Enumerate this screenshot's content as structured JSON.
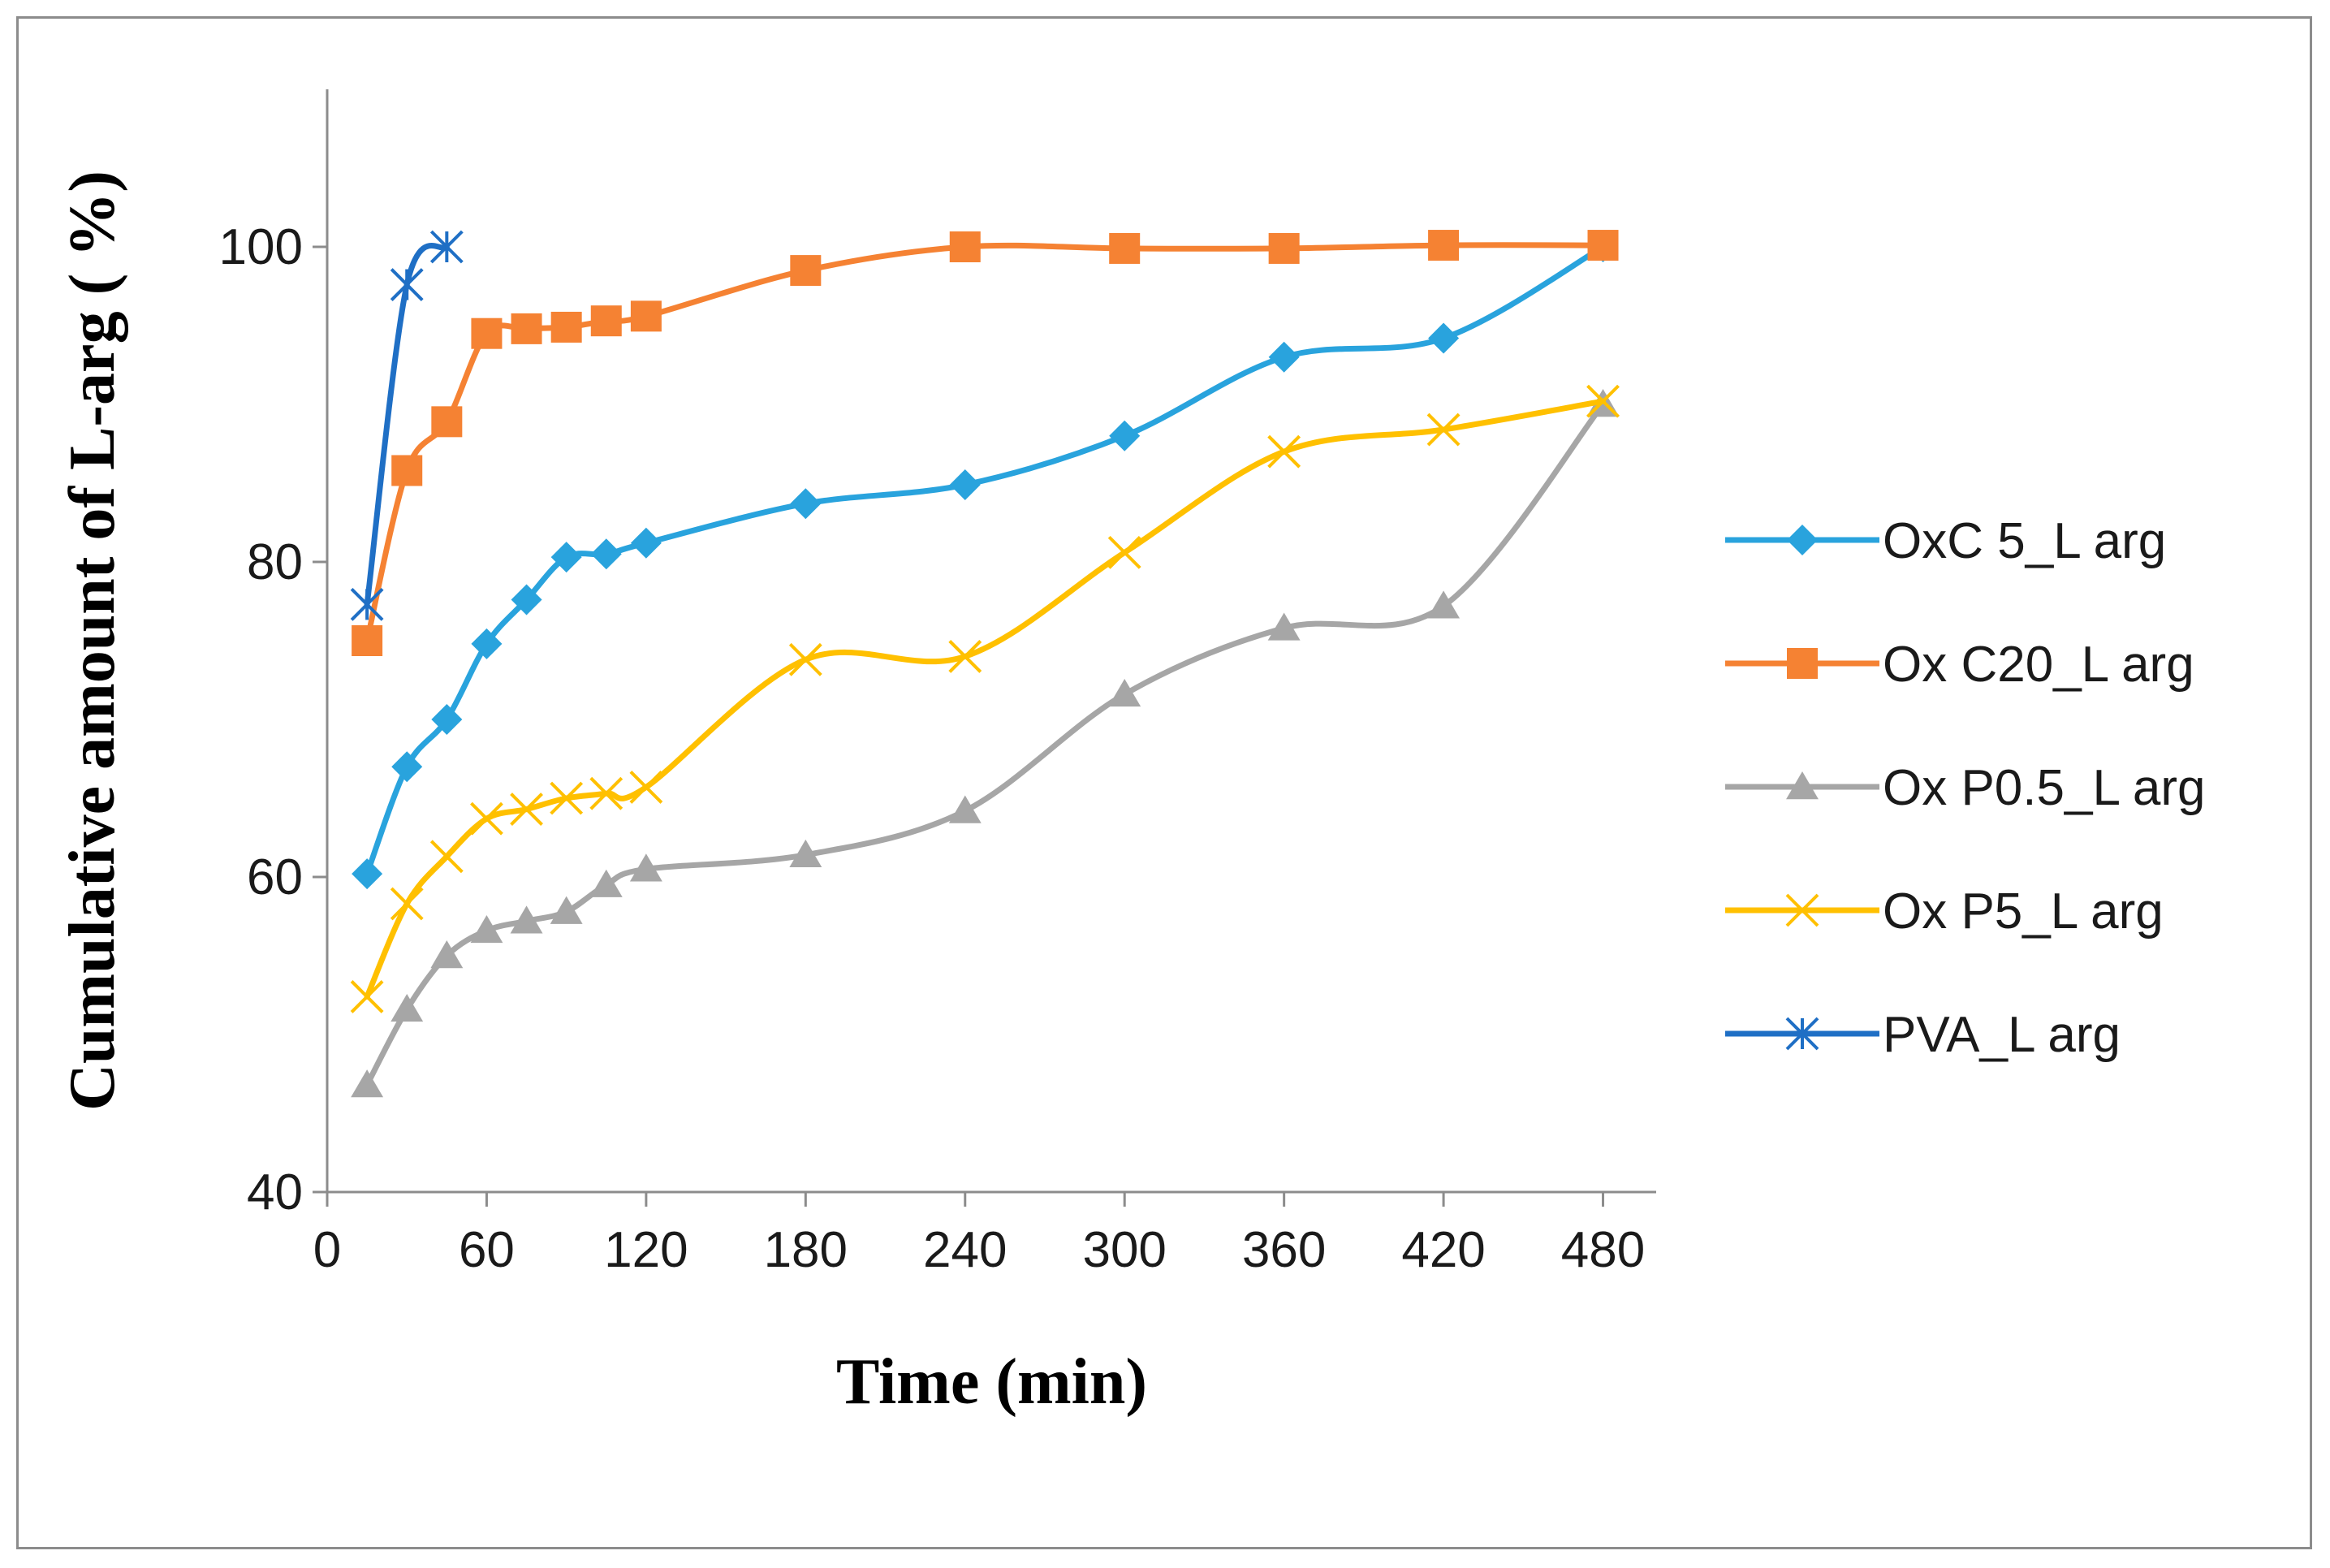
{
  "chart_data": {
    "type": "line",
    "title": "",
    "xlabel": "Time (min)",
    "ylabel": "Cumulative amount of  L-arg ( %)",
    "xlim": [
      0,
      500
    ],
    "ylim": [
      40,
      110
    ],
    "xticks": [
      0,
      60,
      120,
      180,
      240,
      300,
      360,
      420,
      480
    ],
    "yticks": [
      40,
      60,
      80,
      100
    ],
    "legend_position": "right",
    "series": [
      {
        "name": "OxC 5_L arg",
        "color": "#29a3dd",
        "marker": "diamond",
        "x": [
          15,
          30,
          45,
          60,
          75,
          90,
          105,
          120,
          180,
          240,
          300,
          360,
          420,
          480
        ],
        "y": [
          60.2,
          67.0,
          70.0,
          74.8,
          77.6,
          80.3,
          80.5,
          81.2,
          83.7,
          84.9,
          88.0,
          93.0,
          94.2,
          100.0
        ]
      },
      {
        "name": "Ox C20_L arg",
        "color": "#f58233",
        "marker": "square",
        "x": [
          15,
          30,
          45,
          60,
          75,
          90,
          105,
          120,
          180,
          240,
          300,
          360,
          420,
          480
        ],
        "y": [
          75.0,
          85.8,
          88.9,
          94.5,
          94.8,
          94.9,
          95.3,
          95.6,
          98.5,
          100.0,
          99.9,
          99.9,
          100.1,
          100.1
        ]
      },
      {
        "name": "Ox P0.5_L arg",
        "color": "#a6a6a6",
        "marker": "triangle",
        "x": [
          15,
          30,
          45,
          60,
          75,
          90,
          105,
          120,
          180,
          240,
          300,
          360,
          420,
          480
        ],
        "y": [
          46.8,
          51.6,
          55.0,
          56.6,
          57.2,
          57.8,
          59.5,
          60.5,
          61.4,
          64.2,
          71.6,
          75.8,
          77.2,
          90.0
        ]
      },
      {
        "name": "Ox P5_L arg",
        "color": "#ffc000",
        "marker": "x",
        "x": [
          15,
          30,
          45,
          60,
          75,
          90,
          105,
          120,
          180,
          240,
          300,
          360,
          420,
          480
        ],
        "y": [
          52.4,
          58.3,
          61.3,
          63.7,
          64.3,
          65.0,
          65.3,
          65.7,
          73.8,
          74.0,
          80.6,
          87.0,
          88.4,
          90.2
        ]
      },
      {
        "name": "PVA_L arg",
        "color": "#1f6fc5",
        "marker": "star",
        "x": [
          15,
          30,
          45
        ],
        "y": [
          77.3,
          97.6,
          100.0
        ]
      }
    ]
  }
}
